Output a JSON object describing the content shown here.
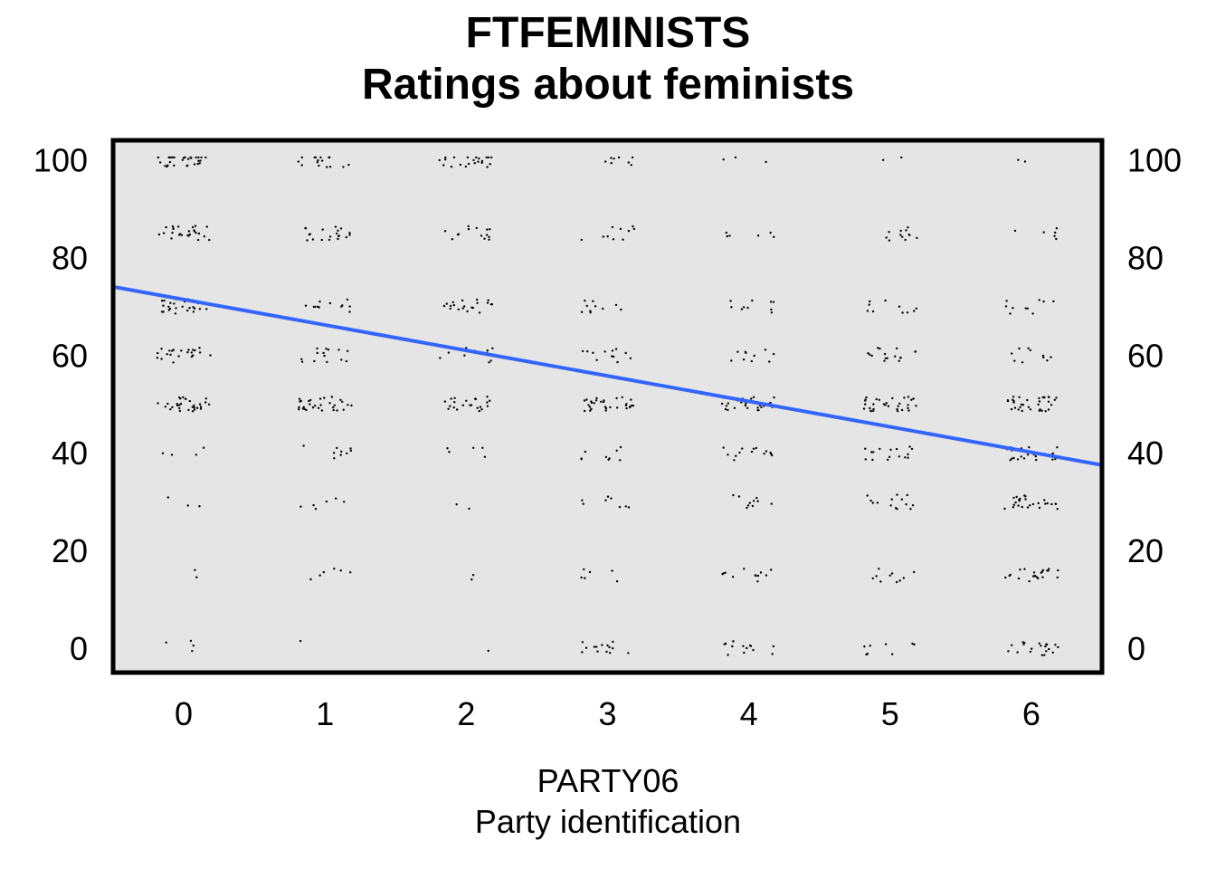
{
  "chart_data": {
    "type": "scatter",
    "title": "FTFEMINISTS",
    "subtitle": "Ratings about feminists",
    "xlabel": "PARTY06",
    "xlabel_sub": "Party identification",
    "ylabel": "",
    "x_ticks": [
      "0",
      "1",
      "2",
      "3",
      "4",
      "5",
      "6"
    ],
    "y_ticks": [
      "0",
      "20",
      "40",
      "60",
      "80",
      "100"
    ],
    "xlim": [
      -0.5,
      6.5
    ],
    "ylim": [
      -5,
      104
    ],
    "grid": false,
    "jitter": true,
    "y_levels": [
      0,
      15,
      30,
      40,
      50,
      60,
      70,
      85,
      100
    ],
    "point_counts": [
      [
        4,
        2,
        3,
        4,
        30,
        22,
        26,
        26,
        28
      ],
      [
        1,
        6,
        6,
        9,
        30,
        14,
        12,
        20,
        16
      ],
      [
        1,
        2,
        2,
        5,
        22,
        10,
        20,
        14,
        22
      ],
      [
        14,
        6,
        8,
        9,
        30,
        12,
        10,
        10,
        8
      ],
      [
        14,
        12,
        10,
        14,
        30,
        10,
        10,
        6,
        3
      ],
      [
        8,
        10,
        14,
        16,
        32,
        16,
        10,
        12,
        2
      ],
      [
        20,
        22,
        26,
        26,
        34,
        10,
        10,
        6,
        2
      ]
    ],
    "trend_line": {
      "x": [
        -0.5,
        6.5
      ],
      "y": [
        74,
        37.5
      ]
    },
    "colors": {
      "panel": "#e5e5e5",
      "points": "#000000",
      "trend": "#3366ff"
    }
  }
}
